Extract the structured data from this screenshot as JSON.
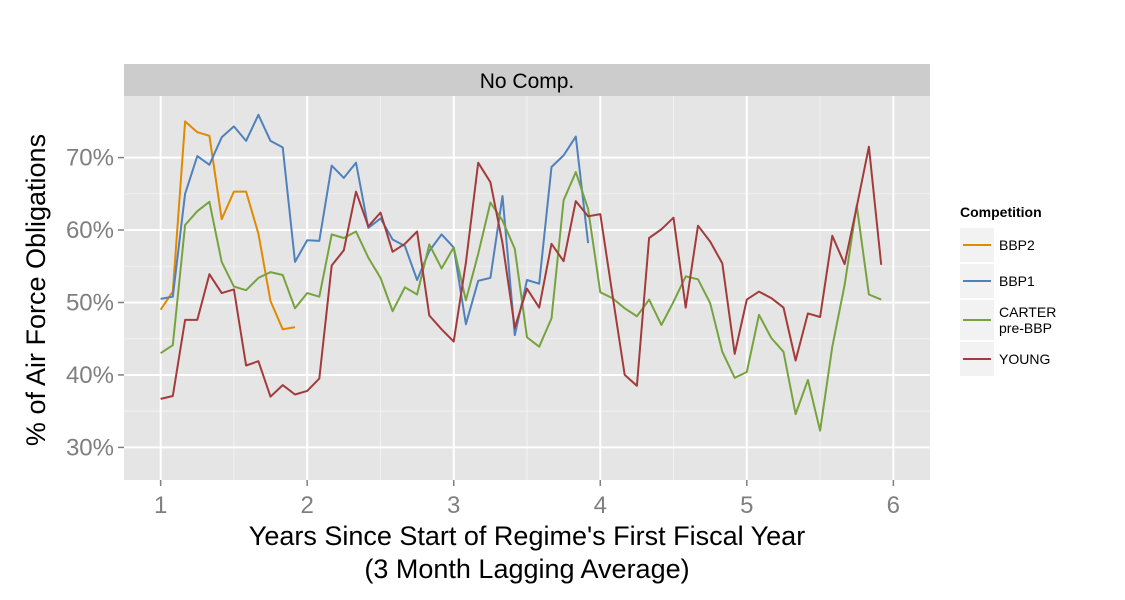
{
  "colors": {
    "panel": "#e5e5e5",
    "strip": "#cccccc",
    "grid_major": "#ffffff",
    "grid_minor": "#f2f2f2",
    "tick": "#7f7f7f",
    "legend_key": "#f2f2f2"
  },
  "chart_data": {
    "type": "line",
    "facet": "No Comp.",
    "xlabel": "Years Since Start of Regime's First Fiscal Year",
    "xlabel_line2": "(3 Month Lagging Average)",
    "ylabel": "% of Air Force Obligations",
    "xlim": [
      0.75,
      6.25
    ],
    "ylim": [
      25.5,
      78.5
    ],
    "x_ticks": [
      1,
      2,
      3,
      4,
      5,
      6
    ],
    "x_tick_labels": [
      "1",
      "2",
      "3",
      "4",
      "5",
      "6"
    ],
    "y_ticks": [
      30,
      40,
      50,
      60,
      70
    ],
    "y_tick_labels": [
      "30%",
      "40%",
      "50%",
      "60%",
      "70%"
    ],
    "grid": true,
    "legend_title": "Competition",
    "legend_position": "right",
    "series": [
      {
        "name": "BBP2",
        "color": "#E08A00",
        "x": [
          1.0,
          1.083,
          1.167,
          1.25,
          1.333,
          1.417,
          1.5,
          1.583,
          1.667,
          1.75,
          1.833,
          1.917
        ],
        "values": [
          49,
          51.5,
          75,
          73.5,
          73,
          61.5,
          65.3,
          65.3,
          59.5,
          50.2,
          46.3,
          46.6
        ]
      },
      {
        "name": "BBP1",
        "color": "#4F81BD",
        "x": [
          1.0,
          1.083,
          1.167,
          1.25,
          1.333,
          1.417,
          1.5,
          1.583,
          1.667,
          1.75,
          1.833,
          1.917,
          2.0,
          2.083,
          2.167,
          2.25,
          2.333,
          2.417,
          2.5,
          2.583,
          2.667,
          2.75,
          2.833,
          2.917,
          3.0,
          3.083,
          3.167,
          3.25,
          3.333,
          3.417,
          3.5,
          3.583,
          3.667,
          3.75,
          3.833,
          3.917
        ],
        "values": [
          50.5,
          50.8,
          65,
          70.2,
          69,
          72.8,
          74.3,
          72.3,
          75.9,
          72.3,
          71.4,
          55.6,
          58.6,
          58.5,
          68.9,
          67.2,
          69.3,
          60.3,
          61.6,
          58.7,
          57.8,
          53.1,
          57.1,
          59.4,
          57.6,
          47,
          53,
          53.4,
          64.7,
          45.5,
          53.1,
          52.6,
          68.7,
          70.3,
          72.9,
          58.2
        ]
      },
      {
        "name": "CARTER\npre-BBP",
        "color": "#77A33F",
        "x": [
          1.0,
          1.083,
          1.167,
          1.25,
          1.333,
          1.417,
          1.5,
          1.583,
          1.667,
          1.75,
          1.833,
          1.917,
          2.0,
          2.083,
          2.167,
          2.25,
          2.333,
          2.417,
          2.5,
          2.583,
          2.667,
          2.75,
          2.833,
          2.917,
          3.0,
          3.083,
          3.167,
          3.25,
          3.333,
          3.417,
          3.5,
          3.583,
          3.667,
          3.75,
          3.833,
          3.917,
          4.0,
          4.083,
          4.167,
          4.25,
          4.333,
          4.417,
          4.5,
          4.583,
          4.667,
          4.75,
          4.833,
          4.917,
          5.0,
          5.083,
          5.167,
          5.25,
          5.333,
          5.417,
          5.5,
          5.583,
          5.667,
          5.75,
          5.833,
          5.917
        ],
        "values": [
          43,
          44.1,
          60.7,
          62.6,
          63.9,
          55.6,
          52.2,
          51.7,
          53.4,
          54.2,
          53.8,
          49.2,
          51.3,
          50.8,
          59.4,
          58.9,
          59.8,
          56.2,
          53.4,
          48.8,
          52.1,
          51.1,
          58,
          54.7,
          57.6,
          50.3,
          56.7,
          63.8,
          61.3,
          57.4,
          45.2,
          43.9,
          47.8,
          64.1,
          68,
          62.9,
          51.4,
          50.6,
          49.2,
          48.1,
          50.4,
          46.9,
          50.1,
          53.6,
          53.2,
          49.9,
          43.2,
          39.6,
          40.4,
          48.3,
          45.1,
          43.2,
          34.6,
          39.3,
          32.3,
          43.9,
          52.4,
          63.4,
          51.1,
          50.4
        ]
      },
      {
        "name": "YOUNG",
        "color": "#A33B3B",
        "x": [
          1.0,
          1.083,
          1.167,
          1.25,
          1.333,
          1.417,
          1.5,
          1.583,
          1.667,
          1.75,
          1.833,
          1.917,
          2.0,
          2.083,
          2.167,
          2.25,
          2.333,
          2.417,
          2.5,
          2.583,
          2.667,
          2.75,
          2.833,
          2.917,
          3.0,
          3.083,
          3.167,
          3.25,
          3.333,
          3.417,
          3.5,
          3.583,
          3.667,
          3.75,
          3.833,
          3.917,
          4.0,
          4.083,
          4.167,
          4.25,
          4.333,
          4.417,
          4.5,
          4.583,
          4.667,
          4.75,
          4.833,
          4.917,
          5.0,
          5.083,
          5.167,
          5.25,
          5.333,
          5.417,
          5.5,
          5.583,
          5.667,
          5.75,
          5.833,
          5.917
        ],
        "values": [
          36.7,
          37.1,
          47.6,
          47.6,
          53.9,
          51.3,
          51.8,
          41.3,
          41.9,
          37,
          38.6,
          37.3,
          37.8,
          39.5,
          55.1,
          57.2,
          65.3,
          60.5,
          62.4,
          57,
          58.1,
          59.8,
          48.2,
          46.3,
          44.6,
          55.5,
          69.3,
          66.6,
          58.2,
          46.5,
          51.9,
          49.3,
          58.1,
          55.7,
          64,
          61.9,
          62.2,
          51.1,
          40,
          38.5,
          58.9,
          60.1,
          61.7,
          49.3,
          60.6,
          58.4,
          55.4,
          42.9,
          50.4,
          51.5,
          50.6,
          49.3,
          42,
          48.5,
          48,
          59.2,
          55.3,
          63.2,
          71.5,
          55.2
        ]
      }
    ]
  }
}
